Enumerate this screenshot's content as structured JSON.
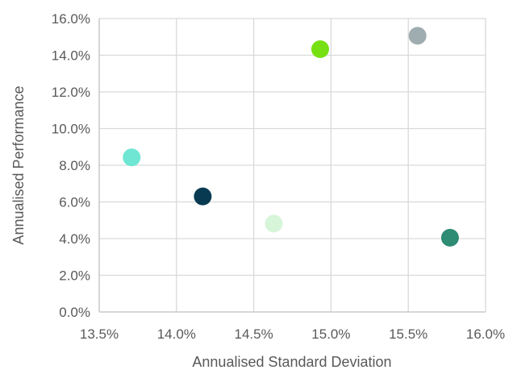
{
  "chart_data": {
    "type": "scatter",
    "title": "",
    "xlabel": "Annualised Standard Deviation",
    "ylabel": "Annualised Performance",
    "xlim": [
      0.135,
      0.16
    ],
    "ylim": [
      0.0,
      0.16
    ],
    "x_ticks": [
      0.135,
      0.14,
      0.145,
      0.15,
      0.155,
      0.16
    ],
    "y_ticks": [
      0.0,
      0.02,
      0.04,
      0.06,
      0.08,
      0.1,
      0.12,
      0.14,
      0.16
    ],
    "x_tick_labels": [
      "13.5%",
      "14.0%",
      "14.5%",
      "15.0%",
      "15.5%",
      "16.0%"
    ],
    "y_tick_labels": [
      "0.0%",
      "2.0%",
      "4.0%",
      "6.0%",
      "8.0%",
      "10.0%",
      "12.0%",
      "14.0%",
      "16.0%"
    ],
    "grid": true,
    "legend": "none",
    "points": [
      {
        "x": 0.1371,
        "y": 0.0843,
        "color": "#6ee6d3"
      },
      {
        "x": 0.1417,
        "y": 0.063,
        "color": "#083b52"
      },
      {
        "x": 0.1463,
        "y": 0.0482,
        "color": "#d7f5d9"
      },
      {
        "x": 0.1493,
        "y": 0.1433,
        "color": "#76e013"
      },
      {
        "x": 0.1556,
        "y": 0.1506,
        "color": "#9fadb1"
      },
      {
        "x": 0.1577,
        "y": 0.0405,
        "color": "#2e8b74"
      }
    ]
  }
}
